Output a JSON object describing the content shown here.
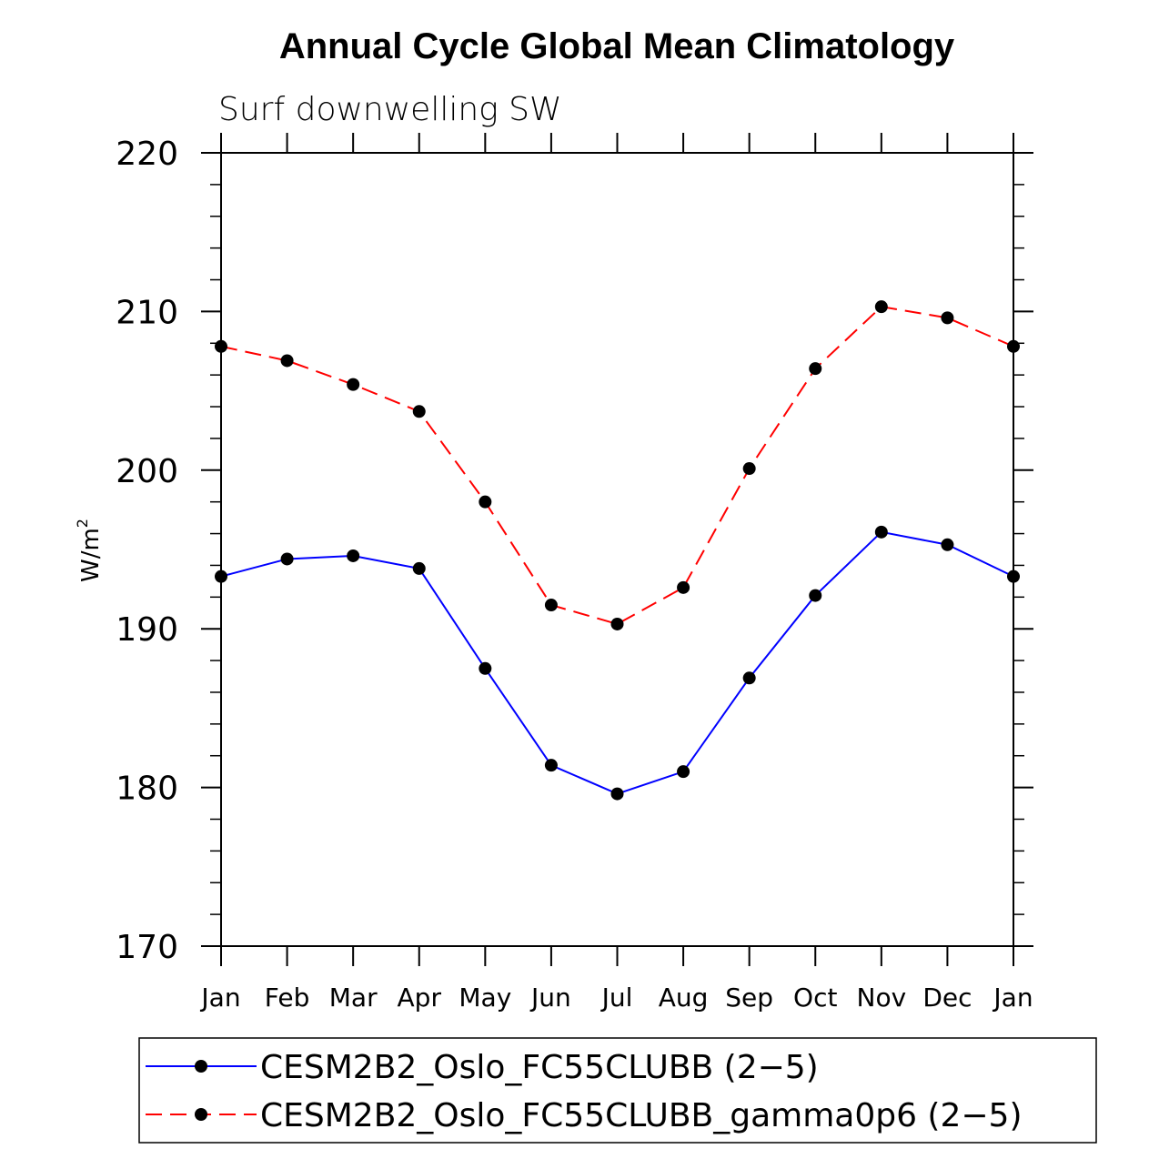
{
  "chart_data": {
    "type": "line",
    "title": "Annual Cycle Global Mean Climatology",
    "subtitle": "Surf downwelling SW",
    "xlabel": "",
    "ylabel": "W/m",
    "ylabel_superscript": "2",
    "ylim": [
      170,
      220
    ],
    "y_major_ticks": [
      170,
      180,
      190,
      200,
      210,
      220
    ],
    "y_minor_step": 2,
    "grid": false,
    "legend_position": "bottom",
    "categories": [
      "Jan",
      "Feb",
      "Mar",
      "Apr",
      "May",
      "Jun",
      "Jul",
      "Aug",
      "Sep",
      "Oct",
      "Nov",
      "Dec",
      "Jan"
    ],
    "series": [
      {
        "name": "CESM2B2_Oslo_FC55CLUBB (2-5)",
        "legend_label": "CESM2B2_Oslo_FC55CLUBB (2−5)",
        "color": "#0000ff",
        "dash": "solid",
        "values": [
          193.3,
          194.4,
          194.6,
          193.8,
          187.5,
          181.4,
          179.6,
          181.0,
          186.9,
          192.1,
          196.1,
          195.3,
          193.3
        ]
      },
      {
        "name": "CESM2B2_Oslo_FC55CLUBB_gamma0p6 (2-5)",
        "legend_label": "CESM2B2_Oslo_FC55CLUBB_gamma0p6 (2−5)",
        "color": "#ff0000",
        "dash": "dashed",
        "values": [
          207.8,
          206.9,
          205.4,
          203.7,
          198.0,
          191.5,
          190.3,
          192.6,
          200.1,
          206.4,
          210.3,
          209.6,
          207.8
        ]
      }
    ],
    "marker_color": "#000000"
  }
}
